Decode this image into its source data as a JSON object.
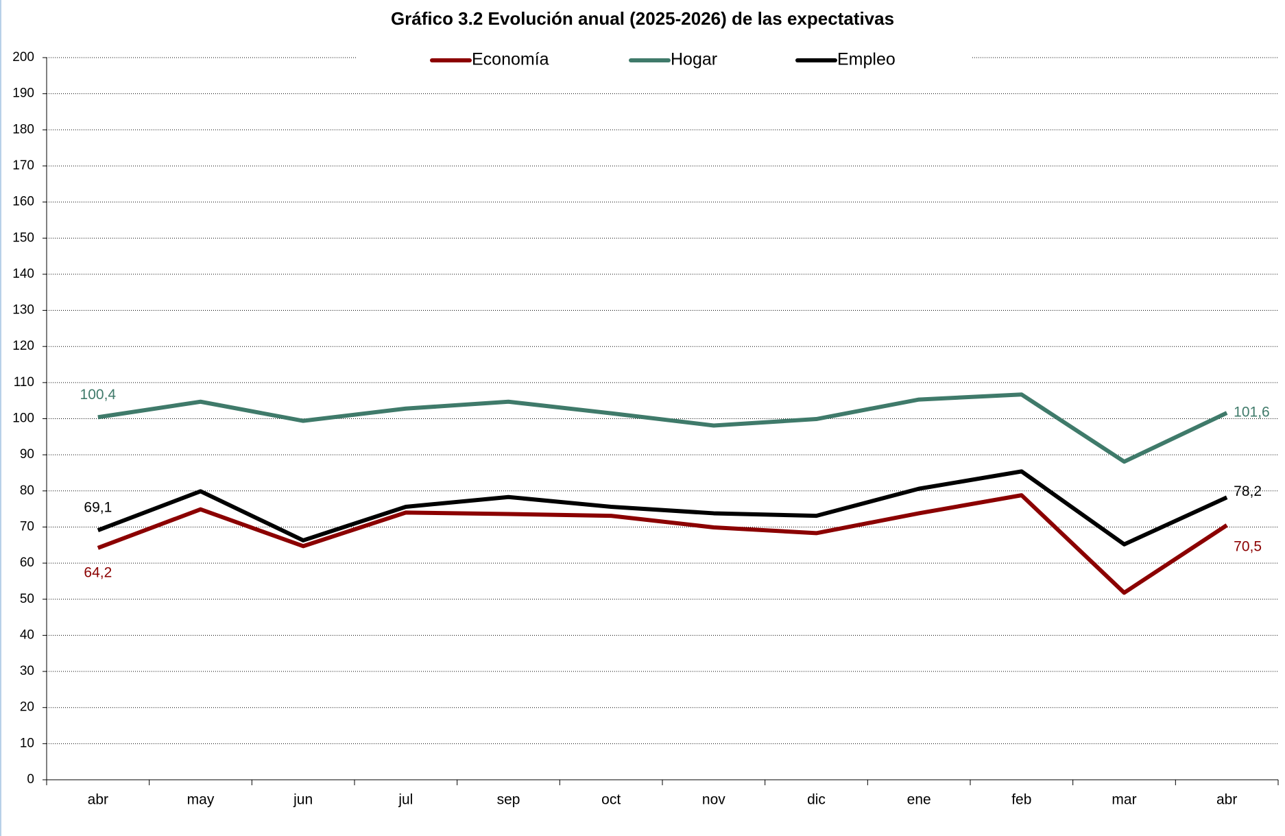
{
  "chart_data": {
    "type": "line",
    "title": "Gráfico 3.2 Evolución anual (2025-2026) de las expectativas",
    "categories": [
      "abr",
      "may",
      "jun",
      "jul",
      "sep",
      "oct",
      "nov",
      "dic",
      "ene",
      "feb",
      "mar",
      "abr"
    ],
    "series": [
      {
        "name": "Economía",
        "color": "#8b0000",
        "values": [
          64.2,
          74.9,
          64.7,
          74.0,
          73.6,
          73.1,
          69.9,
          68.3,
          73.8,
          78.8,
          51.8,
          70.5
        ],
        "value_labels": [
          "64,2",
          null,
          null,
          null,
          null,
          null,
          null,
          null,
          null,
          null,
          null,
          "70,5"
        ]
      },
      {
        "name": "Hogar",
        "color": "#3f7a6a",
        "values": [
          100.4,
          104.7,
          99.4,
          102.8,
          104.7,
          101.5,
          98.1,
          99.9,
          105.3,
          106.7,
          88.1,
          101.6
        ],
        "value_labels": [
          "100,4",
          null,
          null,
          null,
          null,
          null,
          null,
          null,
          null,
          null,
          null,
          "101,6"
        ]
      },
      {
        "name": "Empleo",
        "color": "#000000",
        "values": [
          69.1,
          79.9,
          66.3,
          75.6,
          78.3,
          75.6,
          73.8,
          73.1,
          80.6,
          85.4,
          65.2,
          78.2
        ],
        "value_labels": [
          "69,1",
          null,
          null,
          null,
          null,
          null,
          null,
          null,
          null,
          null,
          null,
          "78,2"
        ]
      }
    ],
    "ylim": [
      0,
      200
    ],
    "yticks": [
      0,
      10,
      20,
      30,
      40,
      50,
      60,
      70,
      80,
      90,
      100,
      110,
      120,
      130,
      140,
      150,
      160,
      170,
      180,
      190,
      200
    ],
    "grid": true,
    "legend": "top"
  }
}
